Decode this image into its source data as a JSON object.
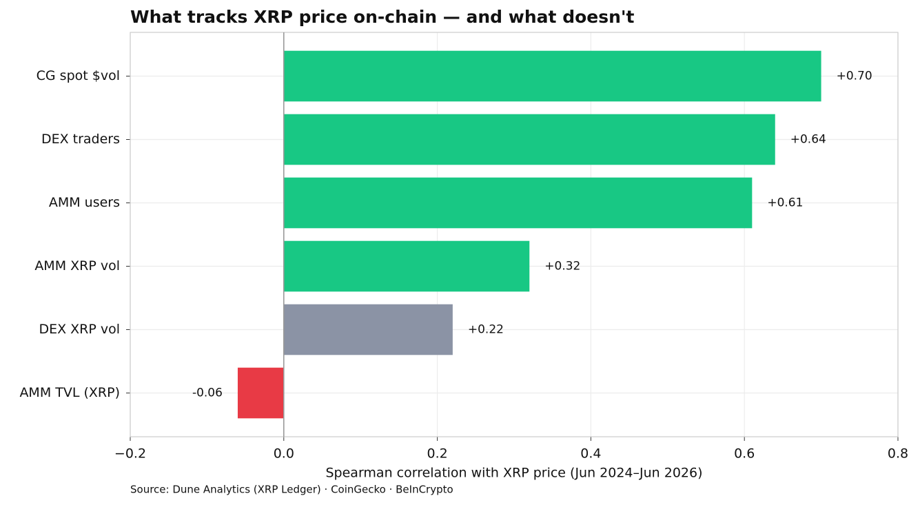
{
  "chart_data": {
    "type": "bar",
    "orientation": "horizontal",
    "title": "What tracks XRP price on-chain — and what doesn't",
    "categories": [
      "CG spot $vol",
      "DEX traders",
      "AMM users",
      "AMM XRP vol",
      "DEX XRP vol",
      "AMM TVL (XRP)"
    ],
    "values": [
      0.7,
      0.64,
      0.61,
      0.32,
      0.22,
      -0.06
    ],
    "value_labels": [
      "+0.70",
      "+0.64",
      "+0.61",
      "+0.32",
      "+0.22",
      "-0.06"
    ],
    "colors": [
      "#18c884",
      "#18c884",
      "#18c884",
      "#18c884",
      "#8b93a5",
      "#e83a45"
    ],
    "xlim": [
      -0.2,
      0.8
    ],
    "xticks": [
      {
        "value": -0.2,
        "label": "−0.2"
      },
      {
        "value": 0,
        "label": "0.0"
      },
      0.2,
      0.4,
      0.6,
      0.8
    ],
    "xlabel": "Spearman correlation with XRP price (Jun 2024–Jun 2026)",
    "source": "Source: Dune Analytics (XRP Ledger) · CoinGecko · BeInCrypto",
    "grid": true
  }
}
